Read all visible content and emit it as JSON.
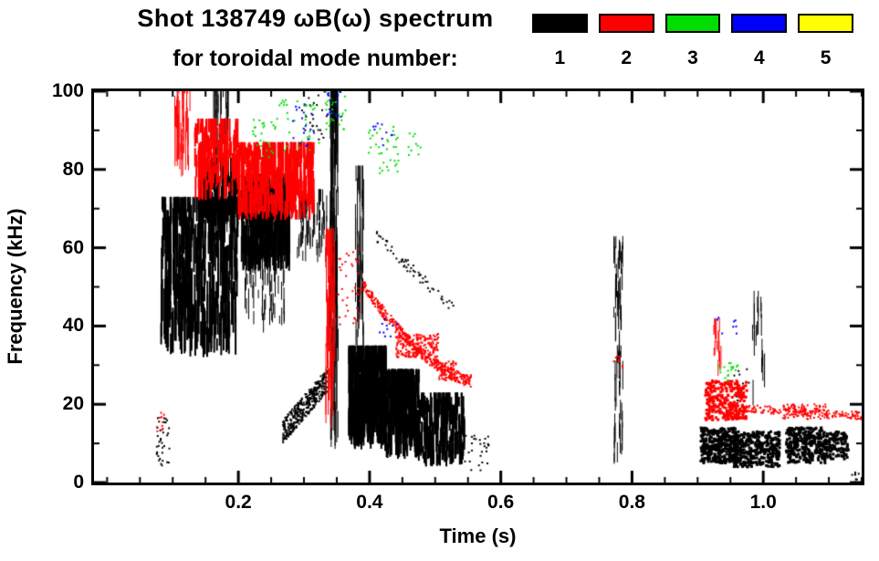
{
  "header": {
    "title": "Shot 138749 ωB(ω) spectrum",
    "subtitle": "for toroidal mode number:"
  },
  "legend": {
    "items": [
      {
        "label": "1",
        "color": "#000000"
      },
      {
        "label": "2",
        "color": "#ff0000"
      },
      {
        "label": "3",
        "color": "#00dd00"
      },
      {
        "label": "4",
        "color": "#0000ff"
      },
      {
        "label": "5",
        "color": "#ffff00"
      }
    ]
  },
  "chart_data": {
    "type": "scatter",
    "title": "Shot 138749 ωB(ω) spectrum for toroidal mode number: 1 2 3 4 5",
    "xlabel": "Time (s)",
    "ylabel": "Frequency (kHz)",
    "xlim": [
      -0.02,
      1.15
    ],
    "ylim": [
      0,
      100
    ],
    "grid": false,
    "legend_position": "top-right",
    "xticks": {
      "values": [
        0.2,
        0.4,
        0.6,
        0.8,
        1.0
      ],
      "labels": [
        "0.2",
        "0.4",
        "0.6",
        "0.8",
        "1.0"
      ],
      "minor_interval": 0.05
    },
    "yticks": {
      "values": [
        0,
        20,
        40,
        60,
        80,
        100
      ],
      "labels": [
        "0",
        "20",
        "40",
        "60",
        "80",
        "100"
      ],
      "minor_interval": 10
    },
    "clusters": [
      {
        "mode": 1,
        "kind": "streaks",
        "t": [
          0.082,
          0.2
        ],
        "f": [
          32,
          70
        ],
        "n": 420,
        "len": [
          3,
          14
        ],
        "w": 2
      },
      {
        "mode": 1,
        "kind": "streaks",
        "t": [
          0.14,
          0.2
        ],
        "f": [
          66,
          80
        ],
        "n": 150,
        "len": [
          2,
          8
        ],
        "w": 2
      },
      {
        "mode": 1,
        "kind": "streaks",
        "t": [
          0.162,
          0.186
        ],
        "f": [
          62,
          100
        ],
        "n": 55,
        "len": [
          4,
          16
        ],
        "w": 1
      },
      {
        "mode": 1,
        "kind": "blob",
        "t": [
          0.075,
          0.095
        ],
        "f": [
          4,
          17
        ],
        "n": 35,
        "s": 2
      },
      {
        "mode": 1,
        "kind": "streaks",
        "t": [
          0.205,
          0.278
        ],
        "f": [
          54,
          76
        ],
        "n": 380,
        "len": [
          3,
          10
        ],
        "w": 2
      },
      {
        "mode": 1,
        "kind": "streaks",
        "t": [
          0.21,
          0.27
        ],
        "f": [
          38,
          58
        ],
        "n": 70,
        "len": [
          2,
          8
        ],
        "w": 1
      },
      {
        "mode": 1,
        "kind": "streaks",
        "t": [
          0.29,
          0.335
        ],
        "f": [
          56,
          72
        ],
        "n": 70,
        "len": [
          2,
          7
        ],
        "w": 1
      },
      {
        "mode": 1,
        "kind": "curve",
        "t": [
          0.268,
          0.335
        ],
        "f": [
          13,
          26
        ],
        "decay": 1,
        "th": 6,
        "n": 380,
        "s": 2
      },
      {
        "mode": 1,
        "kind": "streaks",
        "t": [
          0.34,
          0.352
        ],
        "f": [
          8,
          98
        ],
        "n": 90,
        "len": [
          5,
          30
        ],
        "w": 1
      },
      {
        "mode": 1,
        "kind": "blob",
        "t": [
          0.295,
          0.34
        ],
        "f": [
          86,
          100
        ],
        "n": 25,
        "s": 2
      },
      {
        "mode": 1,
        "kind": "streaks",
        "t": [
          0.378,
          0.392
        ],
        "f": [
          30,
          78
        ],
        "n": 40,
        "len": [
          4,
          18
        ],
        "w": 1
      },
      {
        "mode": 1,
        "kind": "streaks",
        "t": [
          0.368,
          0.425
        ],
        "f": [
          8,
          32
        ],
        "n": 330,
        "len": [
          3,
          12
        ],
        "w": 2
      },
      {
        "mode": 1,
        "kind": "streaks",
        "t": [
          0.425,
          0.475
        ],
        "f": [
          6,
          26
        ],
        "n": 280,
        "len": [
          3,
          10
        ],
        "w": 2
      },
      {
        "mode": 1,
        "kind": "streaks",
        "t": [
          0.475,
          0.545
        ],
        "f": [
          4,
          20
        ],
        "n": 220,
        "len": [
          2,
          8
        ],
        "w": 2
      },
      {
        "mode": 1,
        "kind": "blob",
        "t": [
          0.545,
          0.585
        ],
        "f": [
          3,
          12
        ],
        "n": 28,
        "s": 2
      },
      {
        "mode": 1,
        "kind": "curve",
        "t": [
          0.41,
          0.53
        ],
        "f": [
          63,
          44
        ],
        "decay": 1,
        "th": 3,
        "n": 60,
        "s": 2
      },
      {
        "mode": 1,
        "kind": "streaks",
        "t": [
          0.772,
          0.786
        ],
        "f": [
          4,
          60
        ],
        "n": 70,
        "len": [
          2,
          8
        ],
        "w": 1
      },
      {
        "mode": 1,
        "kind": "blob",
        "t": [
          0.905,
          0.96
        ],
        "f": [
          5,
          14
        ],
        "n": 380,
        "s": 3
      },
      {
        "mode": 1,
        "kind": "blob",
        "t": [
          0.955,
          1.025
        ],
        "f": [
          4,
          13
        ],
        "n": 360,
        "s": 3
      },
      {
        "mode": 1,
        "kind": "blob",
        "t": [
          1.035,
          1.095
        ],
        "f": [
          5,
          14
        ],
        "n": 330,
        "s": 3
      },
      {
        "mode": 1,
        "kind": "blob",
        "t": [
          1.095,
          1.13
        ],
        "f": [
          6,
          13
        ],
        "n": 110,
        "s": 3
      },
      {
        "mode": 1,
        "kind": "streaks",
        "t": [
          0.982,
          1.002
        ],
        "f": [
          16,
          46
        ],
        "n": 18,
        "len": [
          3,
          10
        ],
        "w": 1
      },
      {
        "mode": 1,
        "kind": "blob",
        "t": [
          0.955,
          0.98
        ],
        "f": [
          18,
          30
        ],
        "n": 12,
        "s": 2
      },
      {
        "mode": 1,
        "kind": "blob",
        "t": [
          1.135,
          1.15
        ],
        "f": [
          0,
          3
        ],
        "n": 8,
        "s": 2
      },
      {
        "mode": 2,
        "kind": "streaks",
        "t": [
          0.103,
          0.128
        ],
        "f": [
          78,
          100
        ],
        "n": 45,
        "len": [
          3,
          12
        ],
        "w": 1
      },
      {
        "mode": 2,
        "kind": "streaks",
        "t": [
          0.134,
          0.2
        ],
        "f": [
          72,
          90
        ],
        "n": 160,
        "len": [
          2,
          8
        ],
        "w": 2
      },
      {
        "mode": 2,
        "kind": "streaks",
        "t": [
          0.2,
          0.315
        ],
        "f": [
          67,
          84
        ],
        "n": 420,
        "len": [
          2,
          8
        ],
        "w": 2
      },
      {
        "mode": 2,
        "kind": "streaks",
        "t": [
          0.332,
          0.347
        ],
        "f": [
          14,
          62
        ],
        "n": 70,
        "len": [
          4,
          16
        ],
        "w": 1
      },
      {
        "mode": 2,
        "kind": "blob",
        "t": [
          0.352,
          0.386
        ],
        "f": [
          40,
          60
        ],
        "n": 40,
        "s": 2
      },
      {
        "mode": 2,
        "kind": "curve",
        "t": [
          0.388,
          0.555
        ],
        "f": [
          51,
          26
        ],
        "decay": 1.6,
        "th": 3,
        "n": 420,
        "s": 2
      },
      {
        "mode": 2,
        "kind": "blob",
        "t": [
          0.44,
          0.505
        ],
        "f": [
          32,
          38
        ],
        "n": 200,
        "s": 2
      },
      {
        "mode": 2,
        "kind": "blob",
        "t": [
          0.505,
          0.535
        ],
        "f": [
          26,
          31
        ],
        "n": 60,
        "s": 2
      },
      {
        "mode": 2,
        "kind": "blob",
        "t": [
          0.772,
          0.786
        ],
        "f": [
          28,
          33
        ],
        "n": 8,
        "s": 2
      },
      {
        "mode": 2,
        "kind": "blob",
        "t": [
          0.912,
          0.975
        ],
        "f": [
          16,
          26
        ],
        "n": 300,
        "s": 3
      },
      {
        "mode": 2,
        "kind": "curve",
        "t": [
          0.975,
          1.15
        ],
        "f": [
          19,
          17
        ],
        "decay": 1,
        "th": 2,
        "n": 150,
        "s": 2
      },
      {
        "mode": 2,
        "kind": "blob",
        "t": [
          1.03,
          1.1
        ],
        "f": [
          16,
          20
        ],
        "n": 90,
        "s": 2
      },
      {
        "mode": 2,
        "kind": "streaks",
        "t": [
          0.924,
          0.936
        ],
        "f": [
          27,
          39
        ],
        "n": 16,
        "len": [
          2,
          6
        ],
        "w": 1
      },
      {
        "mode": 2,
        "kind": "blob",
        "t": [
          0.075,
          0.09
        ],
        "f": [
          13,
          18
        ],
        "n": 10,
        "s": 2
      },
      {
        "mode": 3,
        "kind": "blob",
        "t": [
          0.222,
          0.255
        ],
        "f": [
          83,
          93
        ],
        "n": 25,
        "s": 2
      },
      {
        "mode": 3,
        "kind": "blob",
        "t": [
          0.255,
          0.325
        ],
        "f": [
          84,
          98
        ],
        "n": 35,
        "s": 2
      },
      {
        "mode": 3,
        "kind": "blob",
        "t": [
          0.33,
          0.365
        ],
        "f": [
          90,
          100
        ],
        "n": 28,
        "s": 2
      },
      {
        "mode": 3,
        "kind": "blob",
        "t": [
          0.398,
          0.445
        ],
        "f": [
          79,
          91
        ],
        "n": 35,
        "s": 2
      },
      {
        "mode": 3,
        "kind": "blob",
        "t": [
          0.458,
          0.478
        ],
        "f": [
          83,
          90
        ],
        "n": 10,
        "s": 2
      },
      {
        "mode": 3,
        "kind": "blob",
        "t": [
          0.93,
          0.965
        ],
        "f": [
          26,
          31
        ],
        "n": 18,
        "s": 2
      },
      {
        "mode": 4,
        "kind": "blob",
        "t": [
          0.283,
          0.318
        ],
        "f": [
          86,
          97
        ],
        "n": 18,
        "s": 2
      },
      {
        "mode": 4,
        "kind": "blob",
        "t": [
          0.335,
          0.358
        ],
        "f": [
          93,
          100
        ],
        "n": 16,
        "s": 2
      },
      {
        "mode": 4,
        "kind": "blob",
        "t": [
          0.405,
          0.435
        ],
        "f": [
          86,
          93
        ],
        "n": 10,
        "s": 2
      },
      {
        "mode": 4,
        "kind": "blob",
        "t": [
          0.412,
          0.442
        ],
        "f": [
          37,
          42
        ],
        "n": 10,
        "s": 2
      },
      {
        "mode": 4,
        "kind": "blob",
        "t": [
          0.93,
          0.962
        ],
        "f": [
          38,
          43
        ],
        "n": 8,
        "s": 2
      }
    ]
  }
}
